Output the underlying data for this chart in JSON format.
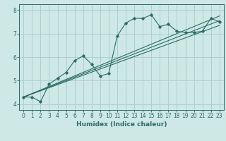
{
  "xlabel": "Humidex (Indice chaleur)",
  "ylabel": "",
  "background_color": "#cde8e5",
  "grid_color": "#aed0cc",
  "line_color": "#2e6b65",
  "xlim": [
    -0.5,
    23.5
  ],
  "ylim": [
    3.75,
    8.25
  ],
  "xticks": [
    0,
    1,
    2,
    3,
    4,
    5,
    6,
    7,
    8,
    9,
    10,
    11,
    12,
    13,
    14,
    15,
    16,
    17,
    18,
    19,
    20,
    21,
    22,
    23
  ],
  "yticks": [
    4,
    5,
    6,
    7,
    8
  ],
  "curve_x": [
    0,
    1,
    2,
    3,
    4,
    5,
    6,
    7,
    8,
    9,
    10,
    11,
    12,
    13,
    14,
    15,
    16,
    17,
    18,
    19,
    20,
    21,
    22,
    23
  ],
  "curve_y": [
    4.3,
    4.3,
    4.1,
    4.85,
    5.1,
    5.35,
    5.85,
    6.05,
    5.7,
    5.2,
    5.3,
    6.9,
    7.45,
    7.65,
    7.65,
    7.8,
    7.3,
    7.4,
    7.1,
    7.05,
    7.05,
    7.1,
    7.65,
    7.5
  ],
  "line1_x": [
    0,
    23
  ],
  "line1_y": [
    4.3,
    7.75
  ],
  "line2_x": [
    0,
    23
  ],
  "line2_y": [
    4.3,
    7.55
  ],
  "line3_x": [
    0,
    23
  ],
  "line3_y": [
    4.3,
    7.35
  ],
  "xlabel_fontsize": 6.5,
  "tick_fontsize": 5.5
}
